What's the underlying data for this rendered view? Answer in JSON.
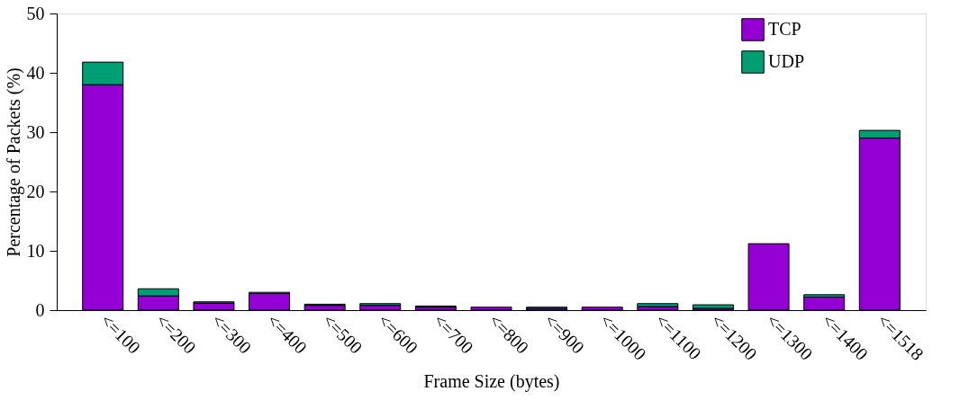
{
  "chart_data": {
    "type": "bar",
    "stacked": true,
    "xlabel": "Frame Size (bytes)",
    "ylabel": "Percentage of Packets (%)",
    "categories": [
      "<=100",
      "<=200",
      "<=300",
      "<=400",
      "<=500",
      "<=600",
      "<=700",
      "<=800",
      "<=900",
      "<=1000",
      "<=1100",
      "<=1200",
      "<=1300",
      "<=1400",
      "<=1518"
    ],
    "series": [
      {
        "name": "TCP",
        "color": "#9400d3",
        "values": [
          38.0,
          2.4,
          1.2,
          2.8,
          0.8,
          0.8,
          0.5,
          0.5,
          0.3,
          0.5,
          0.6,
          0.3,
          11.2,
          2.2,
          29.0
        ]
      },
      {
        "name": "UDP",
        "color": "#009e73",
        "values": [
          3.8,
          1.2,
          0.2,
          0.2,
          0.2,
          0.3,
          0.2,
          0.0,
          0.2,
          0.0,
          0.5,
          0.6,
          0.0,
          0.4,
          1.3
        ]
      }
    ],
    "ylim": [
      0,
      50
    ],
    "yticks": [
      0,
      10,
      20,
      30,
      40,
      50
    ],
    "grid": false,
    "legend": "top right"
  }
}
